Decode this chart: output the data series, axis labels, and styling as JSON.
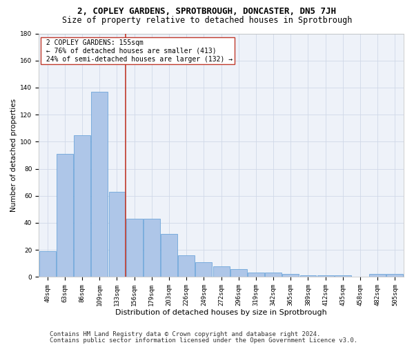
{
  "title1": "2, COPLEY GARDENS, SPROTBROUGH, DONCASTER, DN5 7JH",
  "title2": "Size of property relative to detached houses in Sprotbrough",
  "xlabel": "Distribution of detached houses by size in Sprotbrough",
  "ylabel": "Number of detached properties",
  "categories": [
    "40sqm",
    "63sqm",
    "86sqm",
    "109sqm",
    "133sqm",
    "156sqm",
    "179sqm",
    "203sqm",
    "226sqm",
    "249sqm",
    "272sqm",
    "296sqm",
    "319sqm",
    "342sqm",
    "365sqm",
    "389sqm",
    "412sqm",
    "435sqm",
    "458sqm",
    "482sqm",
    "505sqm"
  ],
  "values": [
    19,
    91,
    105,
    137,
    63,
    43,
    43,
    32,
    16,
    11,
    8,
    6,
    3,
    3,
    2,
    1,
    1,
    1,
    0,
    2,
    2
  ],
  "bar_color": "#aec6e8",
  "bar_edge_color": "#5b9bd5",
  "property_label": "2 COPLEY GARDENS: 155sqm",
  "pct_smaller": 76,
  "n_smaller": 413,
  "pct_larger_semi": 24,
  "n_larger_semi": 132,
  "vline_color": "#c0392b",
  "annotation_box_color": "#c0392b",
  "footer1": "Contains HM Land Registry data © Crown copyright and database right 2024.",
  "footer2": "Contains public sector information licensed under the Open Government Licence v3.0.",
  "ylim": [
    0,
    180
  ],
  "yticks": [
    0,
    20,
    40,
    60,
    80,
    100,
    120,
    140,
    160,
    180
  ],
  "grid_color": "#d0d8e8",
  "bg_color": "#eef2f9",
  "title1_fontsize": 9,
  "title2_fontsize": 8.5,
  "xlabel_fontsize": 8,
  "ylabel_fontsize": 7.5,
  "tick_fontsize": 6.5,
  "annotation_fontsize": 7,
  "footer_fontsize": 6.5,
  "vline_x_index": 4.5
}
